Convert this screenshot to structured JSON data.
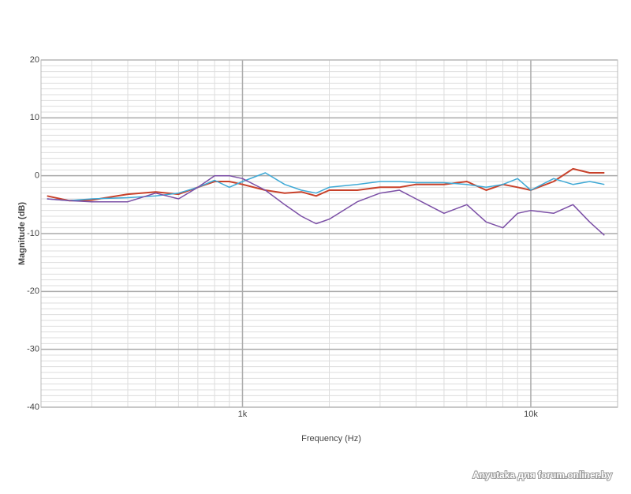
{
  "chart_data": {
    "type": "line",
    "x_label": "Frequency (Hz)",
    "y_label": "Magnitude (dB)",
    "log_x": true,
    "grid": true,
    "xlim": [
      200,
      20000
    ],
    "xticks": [
      {
        "value": 1000,
        "label": "1k"
      },
      {
        "value": 10000,
        "label": "10k"
      }
    ],
    "ylim": [
      -40,
      20
    ],
    "yticks": [
      20,
      10,
      0,
      -10,
      -20,
      -30,
      -40
    ],
    "x": [
      210,
      250,
      300,
      400,
      500,
      600,
      700,
      800,
      900,
      1000,
      1200,
      1400,
      1600,
      1800,
      2000,
      2500,
      3000,
      3500,
      4000,
      5000,
      6000,
      7000,
      8000,
      9000,
      10000,
      12000,
      14000,
      16000,
      18000
    ],
    "series": [
      {
        "color": "#c8412a",
        "values": [
          -3.5,
          -4.3,
          -4.2,
          -3.2,
          -2.8,
          -3.2,
          -2,
          -1,
          -1,
          -1.5,
          -2.5,
          -3,
          -2.8,
          -3.5,
          -2.5,
          -2.5,
          -2,
          -2,
          -1.5,
          -1.5,
          -1,
          -2.5,
          -1.5,
          -2,
          -2.5,
          -1,
          1.2,
          0.5,
          0.5
        ]
      },
      {
        "color": "#3ea9d6",
        "values": [
          -4,
          -4.3,
          -4,
          -3.8,
          -3.5,
          -3,
          -2,
          -0.8,
          -2,
          -1,
          0.5,
          -1.5,
          -2.5,
          -3,
          -2,
          -1.5,
          -1,
          -1,
          -1.2,
          -1.2,
          -1.5,
          -2,
          -1.5,
          -0.5,
          -2.5,
          -0.5,
          -1.5,
          -1,
          -1.5
        ]
      },
      {
        "color": "#7b4fa6",
        "values": [
          -4,
          -4.3,
          -4.5,
          -4.5,
          -3,
          -4,
          -2,
          0,
          0,
          -0.5,
          -2.5,
          -5,
          -7,
          -8.3,
          -7.5,
          -4.5,
          -3,
          -2.5,
          -4,
          -6.5,
          -5,
          -8,
          -9,
          -6.5,
          -6,
          -6.5,
          -5,
          -8,
          -10.3
        ]
      }
    ]
  },
  "watermark": "Anyutaka для forum.onliner.by"
}
